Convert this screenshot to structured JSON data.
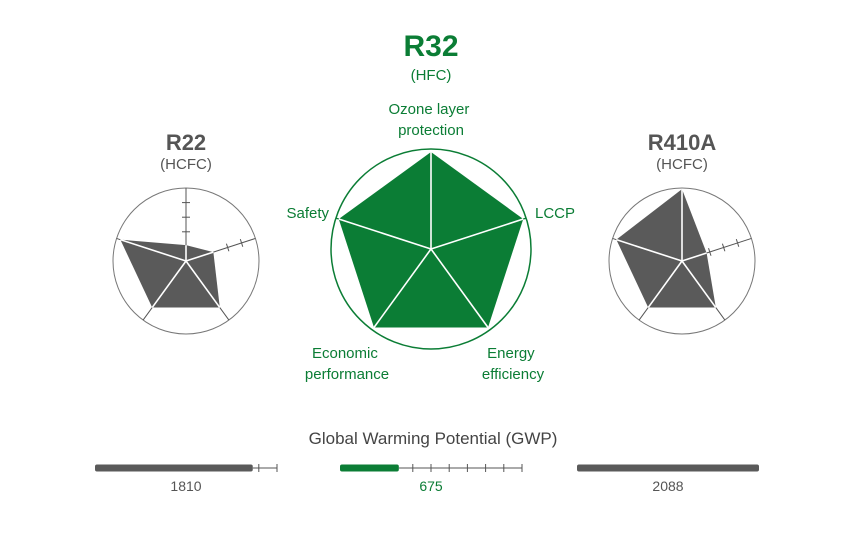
{
  "colors": {
    "green": "#0b7d35",
    "gray": "#5a5a5a",
    "gray_text": "#555555",
    "line": "#777777"
  },
  "chart_data": {
    "type": "radar",
    "axes": [
      "Ozone layer\nprotection",
      "LCCP",
      "Energy\nefficiency",
      "Economic\nperformance",
      "Safety"
    ],
    "scale_max": 5,
    "series": [
      {
        "name": "R22",
        "subtitle": "(HCFC)",
        "values": [
          1.1,
          2.0,
          4.0,
          4.0,
          4.8
        ],
        "color": "#5a5a5a"
      },
      {
        "name": "R32",
        "subtitle": "(HFC)",
        "values": [
          5,
          5,
          5,
          5,
          5
        ],
        "color": "#0b7d35"
      },
      {
        "name": "R410A",
        "subtitle": "(HCFC)",
        "values": [
          5,
          1.8,
          4.0,
          4.0,
          4.8
        ],
        "color": "#5a5a5a"
      }
    ],
    "gwp": {
      "title": "Global Warming Potential (GWP)",
      "max": 2088,
      "items": [
        {
          "label": "1810",
          "value": 1810,
          "color": "#5a5a5a"
        },
        {
          "label": "675",
          "value": 675,
          "color": "#0b7d35"
        },
        {
          "label": "2088",
          "value": 2088,
          "color": "#5a5a5a"
        }
      ]
    }
  }
}
